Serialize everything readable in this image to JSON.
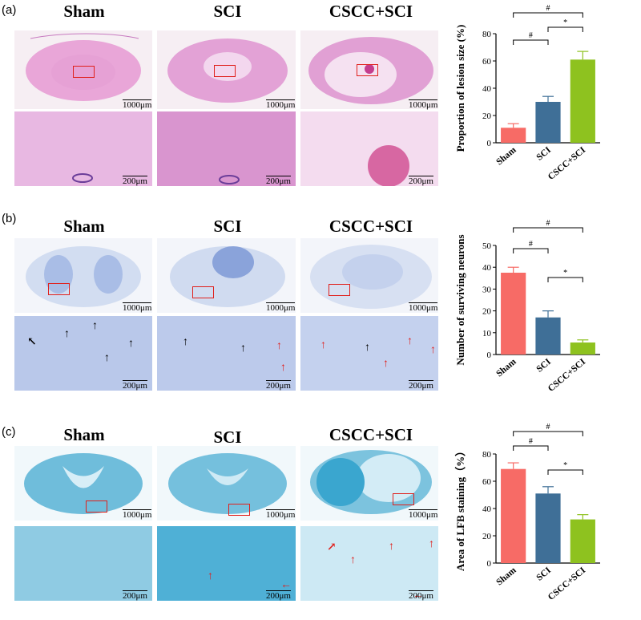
{
  "panels": [
    {
      "label": "(a)",
      "columns": [
        "Sham",
        "SCI",
        "CSCC+SCI"
      ],
      "scale_top": "1000μm",
      "scale_bottom": "200μm",
      "stain_colors": {
        "bg": "#f6eef3",
        "tissue": "#e9a6d8",
        "dark": "#c77ac0",
        "zoom": "#e8b8e2"
      }
    },
    {
      "label": "(b)",
      "columns": [
        "Sham",
        "SCI",
        "CSCC+SCI"
      ],
      "scale_top": "1000μm",
      "scale_bottom": "200μm",
      "stain_colors": {
        "bg": "#f3f5fa",
        "tissue": "#c9d6ef",
        "dark": "#5b73bd",
        "zoom": "#b9c8ea"
      }
    },
    {
      "label": "(c)",
      "columns": [
        "Sham",
        "SCI",
        "CSCC+SCI"
      ],
      "scale_top": "1000μm",
      "scale_bottom": "200μm",
      "stain_colors": {
        "bg": "#f1f8fb",
        "tissue": "#7fc4de",
        "dark": "#2f9bc7",
        "zoom": "#9fd3e8"
      }
    }
  ],
  "chart_data": [
    {
      "type": "bar",
      "ylabel": "Proportion of lesion size (%)",
      "categories": [
        "Sham",
        "SCI",
        "CSCC+SCI"
      ],
      "values": [
        11,
        30,
        61
      ],
      "errors": [
        3,
        4,
        6
      ],
      "ylim": [
        0,
        80
      ],
      "yticks": [
        0,
        20,
        40,
        60,
        80
      ],
      "colors": [
        "#f76b66",
        "#3f6f97",
        "#8ec21f"
      ],
      "significance": [
        {
          "from": 0,
          "to": 1,
          "mark": "#"
        },
        {
          "from": 1,
          "to": 2,
          "mark": "*"
        },
        {
          "from": 0,
          "to": 2,
          "mark": "#"
        }
      ]
    },
    {
      "type": "bar",
      "ylabel": "Number of surviving neurons",
      "categories": [
        "Sham",
        "SCI",
        "CSCC+SCI"
      ],
      "values": [
        37.5,
        17,
        5.5
      ],
      "errors": [
        2.5,
        3,
        1.2
      ],
      "ylim": [
        0,
        50
      ],
      "yticks": [
        0,
        10,
        20,
        30,
        40,
        50
      ],
      "colors": [
        "#f76b66",
        "#3f6f97",
        "#8ec21f"
      ],
      "significance": [
        {
          "from": 0,
          "to": 1,
          "mark": "#"
        },
        {
          "from": 1,
          "to": 2,
          "mark": "*"
        },
        {
          "from": 0,
          "to": 2,
          "mark": "#"
        }
      ]
    },
    {
      "type": "bar",
      "ylabel": "Area of LFB staining（%）",
      "categories": [
        "Sham",
        "SCI",
        "CSCC+SCI"
      ],
      "values": [
        69,
        51,
        32
      ],
      "errors": [
        4.5,
        5,
        3.5
      ],
      "ylim": [
        0,
        80
      ],
      "yticks": [
        0,
        20,
        40,
        60,
        80
      ],
      "colors": [
        "#f76b66",
        "#3f6f97",
        "#8ec21f"
      ],
      "significance": [
        {
          "from": 0,
          "to": 1,
          "mark": "#"
        },
        {
          "from": 1,
          "to": 2,
          "mark": "*"
        },
        {
          "from": 0,
          "to": 2,
          "mark": "#"
        }
      ]
    }
  ]
}
